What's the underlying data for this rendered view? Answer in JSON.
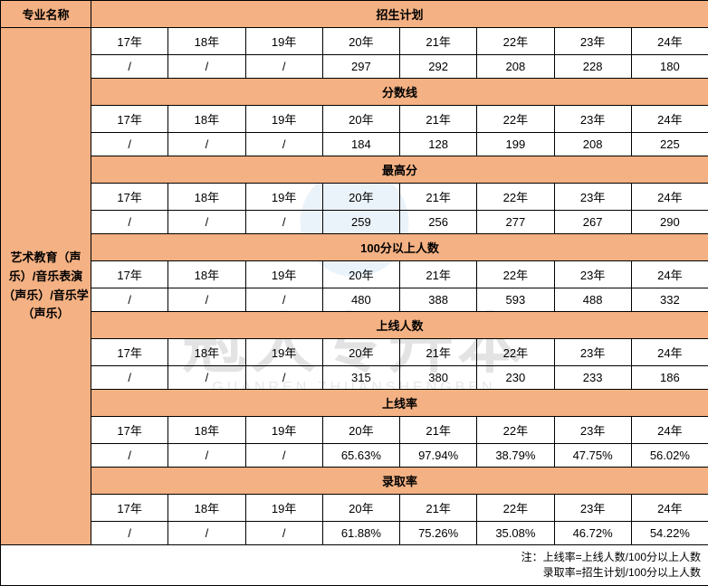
{
  "colors": {
    "header_bg": "#f4b183",
    "border": "#000000",
    "bg": "#ffffff",
    "watermark_circle": "#5aa0d8"
  },
  "watermark": {
    "main": "冠人专升本",
    "sub": "GUANREN ZHUANSHENGBEN"
  },
  "header": {
    "major_col": "专业名称"
  },
  "major": {
    "name": "艺术教育（声乐）/音乐表演（声乐）/音乐学（声乐）"
  },
  "years": [
    "17年",
    "18年",
    "19年",
    "20年",
    "21年",
    "22年",
    "23年",
    "24年"
  ],
  "sections": [
    {
      "title": "招生计划",
      "values": [
        "/",
        "/",
        "/",
        "297",
        "292",
        "208",
        "228",
        "180"
      ]
    },
    {
      "title": "分数线",
      "values": [
        "/",
        "/",
        "/",
        "184",
        "128",
        "199",
        "208",
        "225"
      ]
    },
    {
      "title": "最高分",
      "values": [
        "/",
        "/",
        "/",
        "259",
        "256",
        "277",
        "267",
        "290"
      ]
    },
    {
      "title": "100分以上人数",
      "values": [
        "/",
        "/",
        "/",
        "480",
        "388",
        "593",
        "488",
        "332"
      ]
    },
    {
      "title": "上线人数",
      "values": [
        "/",
        "/",
        "/",
        "315",
        "380",
        "230",
        "233",
        "186"
      ]
    },
    {
      "title": "上线率",
      "values": [
        "/",
        "/",
        "/",
        "65.63%",
        "97.94%",
        "38.79%",
        "47.75%",
        "56.02%"
      ]
    },
    {
      "title": "录取率",
      "values": [
        "/",
        "/",
        "/",
        "61.88%",
        "75.26%",
        "35.08%",
        "46.72%",
        "54.22%"
      ]
    }
  ],
  "footnote": {
    "line1": "注：上线率=上线人数/100分以上人数",
    "line2": "录取率=招生计划/100分以上人数"
  }
}
